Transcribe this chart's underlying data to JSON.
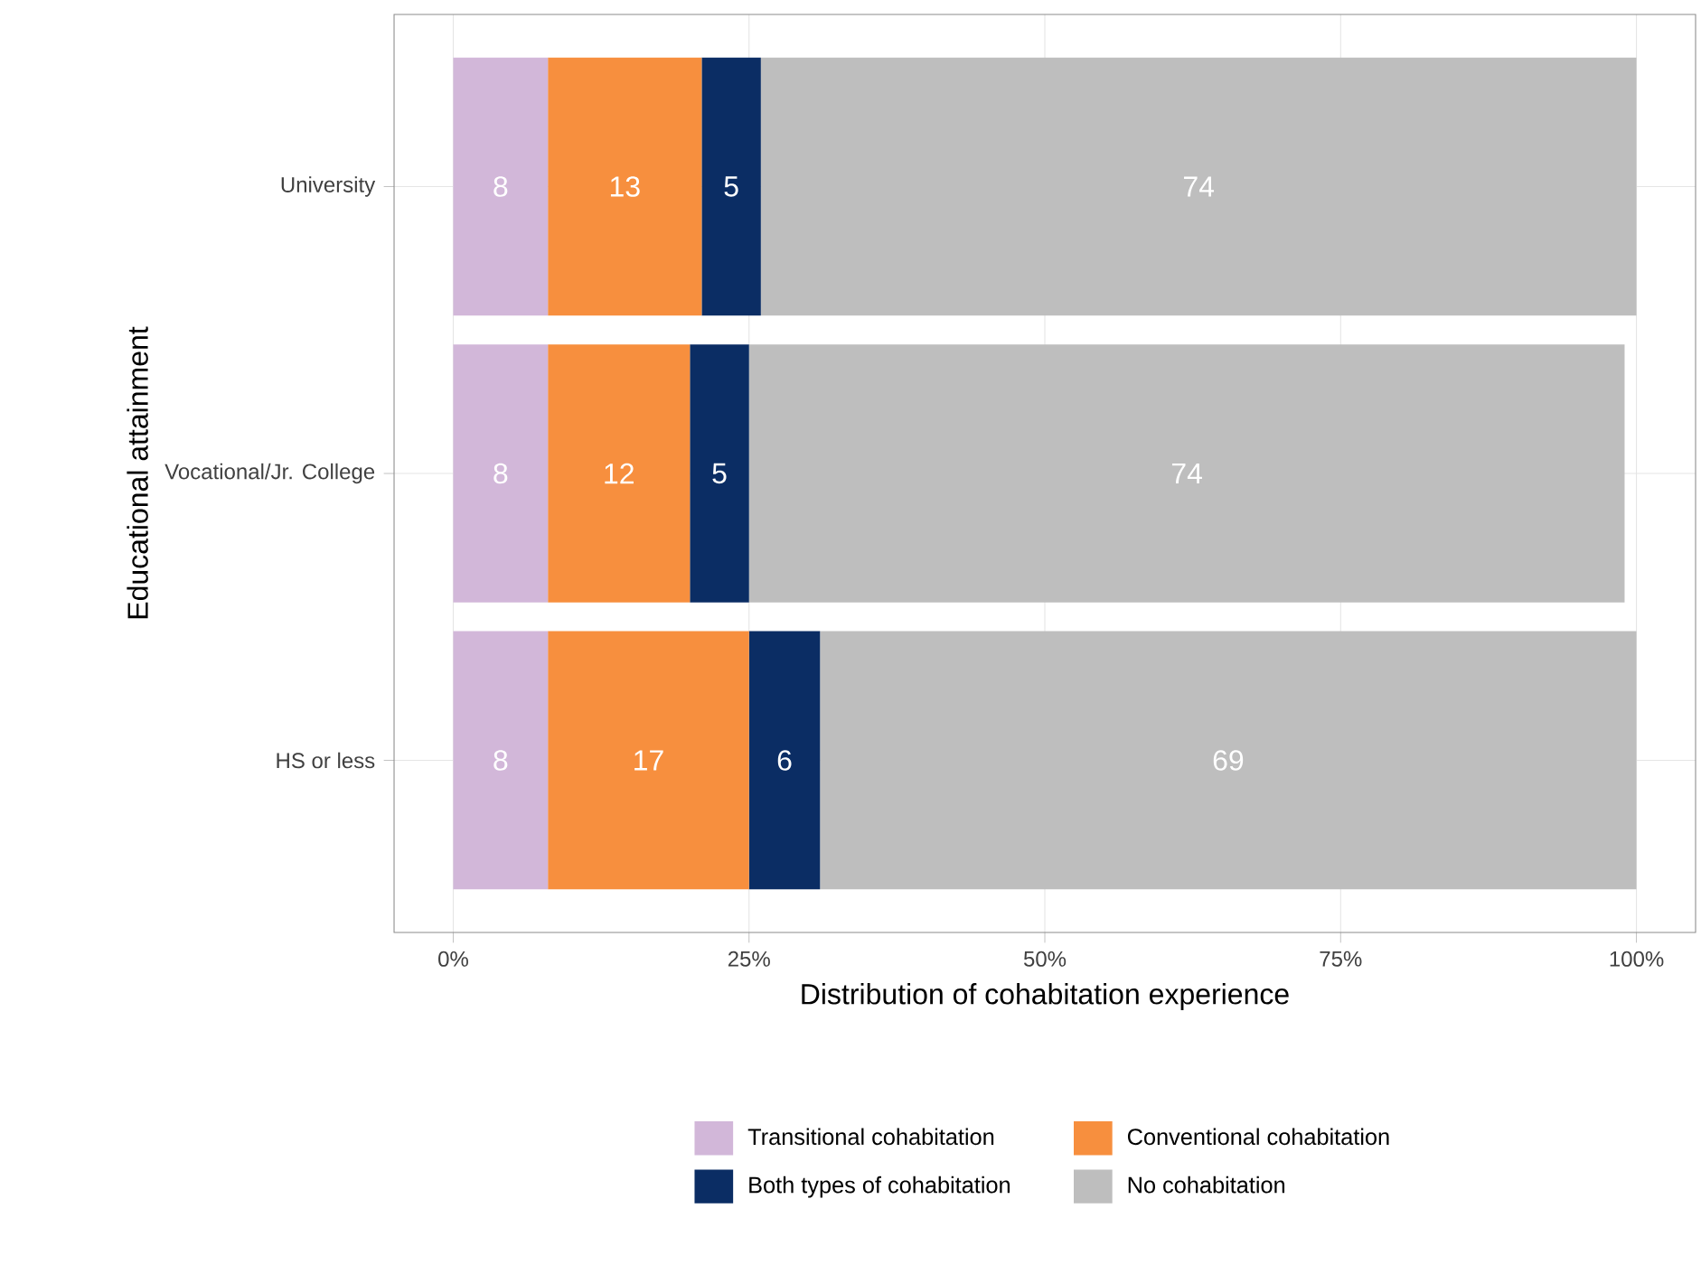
{
  "chart_data": {
    "type": "bar",
    "orientation": "horizontal",
    "stacked": true,
    "xlabel": "Distribution of cohabitation experience",
    "ylabel": "Educational attainment",
    "categories": [
      "University",
      "Vocational/Jr. College",
      "HS or less"
    ],
    "series": [
      {
        "name": "Transitional cohabitation",
        "color": "#d2b7d9",
        "values": [
          8,
          8,
          8
        ]
      },
      {
        "name": "Conventional cohabitation",
        "color": "#f78f3e",
        "values": [
          13,
          12,
          17
        ]
      },
      {
        "name": "Both types of cohabitation",
        "color": "#0b2d64",
        "values": [
          5,
          5,
          6
        ]
      },
      {
        "name": "No cohabitation",
        "color": "#bebebe",
        "values": [
          74,
          74,
          69
        ]
      }
    ],
    "xlim": [
      -5,
      105
    ],
    "xticks": [
      {
        "value": 0,
        "label": "0%"
      },
      {
        "value": 25,
        "label": "25%"
      },
      {
        "value": 50,
        "label": "50%"
      },
      {
        "value": 75,
        "label": "75%"
      },
      {
        "value": 100,
        "label": "100%"
      }
    ],
    "data_labels": true,
    "grid": true,
    "legend": "bottom"
  }
}
